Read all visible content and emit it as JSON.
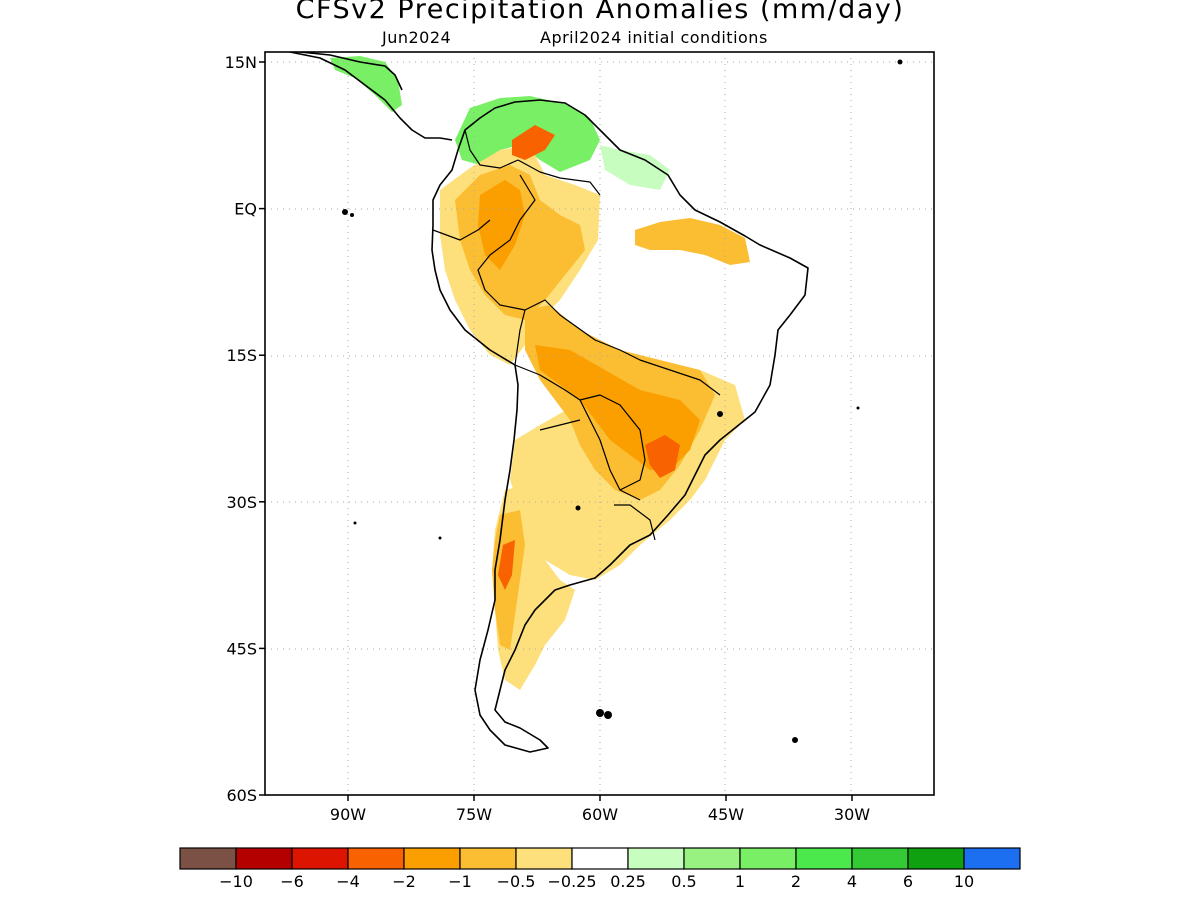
{
  "title": "CFSv2 Precipitation Anomalies (mm/day)",
  "subtitle_left": "Jun2024",
  "subtitle_right": "April2024 initial conditions",
  "lat_ticks": [
    {
      "label": "15N",
      "value": 15
    },
    {
      "label": "EQ",
      "value": 0
    },
    {
      "label": "15S",
      "value": -15
    },
    {
      "label": "30S",
      "value": -30
    },
    {
      "label": "45S",
      "value": -45
    },
    {
      "label": "60S",
      "value": -60
    }
  ],
  "lon_ticks": [
    {
      "label": "90W",
      "value": -90
    },
    {
      "label": "75W",
      "value": -75
    },
    {
      "label": "60W",
      "value": -60
    },
    {
      "label": "45W",
      "value": -45
    },
    {
      "label": "30W",
      "value": -30
    }
  ],
  "map_extent": {
    "lon_min": -100,
    "lon_max": -20,
    "lat_min": -60,
    "lat_max": 16
  },
  "colorbar": {
    "colors": [
      "#7b5145",
      "#b50000",
      "#dd1500",
      "#f86200",
      "#fb9f00",
      "#fbbd32",
      "#fde07c",
      "#ffffff",
      "#c8fdc0",
      "#97f282",
      "#78ef64",
      "#4be94b",
      "#33ca36",
      "#0fa10f",
      "#1c6ff0"
    ],
    "labels": [
      "−10",
      "−6",
      "−4",
      "−2",
      "−1",
      "−0.5",
      "−0.25",
      "0.25",
      "0.5",
      "1",
      "2",
      "4",
      "6",
      "10"
    ]
  },
  "palette": {
    "dry_light": "#fde07c",
    "dry_mid": "#fbbd32",
    "dry_strong": "#fb9f00",
    "dry_heavy": "#f86200",
    "wet_light": "#c8fdc0",
    "wet_mid": "#78ef64",
    "wet_strong": "#4be94b"
  }
}
